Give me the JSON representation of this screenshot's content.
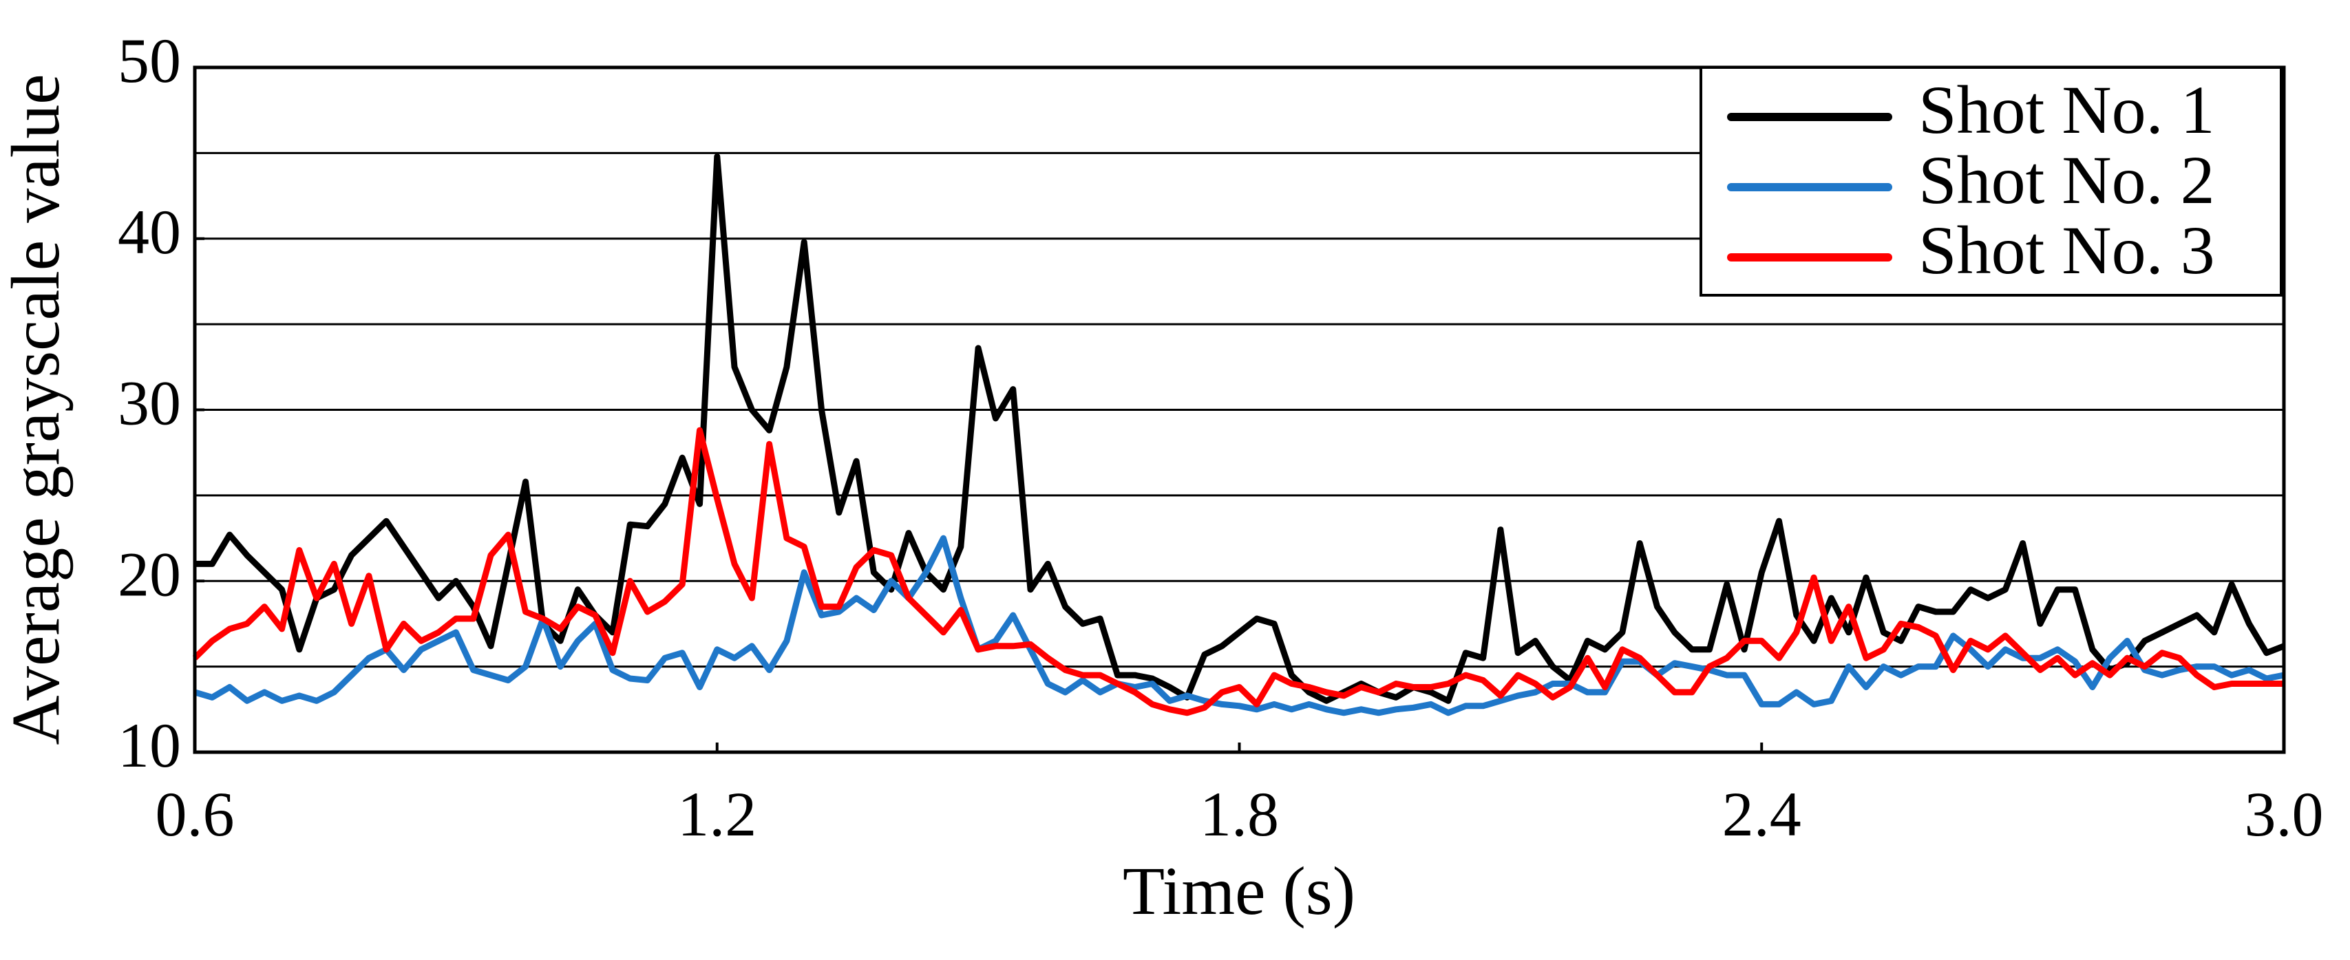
{
  "chart_data": {
    "type": "line",
    "xlabel": "Time (s)",
    "ylabel": "Average grayscale value",
    "xlim": [
      0.6,
      3.0
    ],
    "ylim": [
      10,
      50
    ],
    "xticks": [
      0.6,
      1.2,
      1.8,
      2.4,
      {
        "value": 3,
        "label": "3.0"
      }
    ],
    "yticks": [
      10,
      20,
      30,
      40,
      50
    ],
    "y_gridlines": [
      15,
      20,
      25,
      30,
      35,
      40,
      45
    ],
    "grid": true,
    "legend": "upper right",
    "x": [
      0.6,
      0.62,
      0.64,
      0.66,
      0.68,
      0.7,
      0.72,
      0.74,
      0.76,
      0.78,
      0.8,
      0.82,
      0.84,
      0.86,
      0.88,
      0.9,
      0.92,
      0.94,
      0.96,
      0.98,
      1.0,
      1.02,
      1.04,
      1.06,
      1.08,
      1.1,
      1.12,
      1.14,
      1.16,
      1.18,
      1.2,
      1.22,
      1.24,
      1.26,
      1.28,
      1.3,
      1.32,
      1.34,
      1.36,
      1.38,
      1.4,
      1.42,
      1.44,
      1.46,
      1.48,
      1.5,
      1.52,
      1.54,
      1.56,
      1.58,
      1.6,
      1.62,
      1.64,
      1.66,
      1.68,
      1.7,
      1.72,
      1.74,
      1.76,
      1.78,
      1.8,
      1.82,
      1.84,
      1.86,
      1.88,
      1.9,
      1.92,
      1.94,
      1.96,
      1.98,
      2.0,
      2.02,
      2.04,
      2.06,
      2.08,
      2.1,
      2.12,
      2.14,
      2.16,
      2.18,
      2.2,
      2.22,
      2.24,
      2.26,
      2.28,
      2.3,
      2.32,
      2.34,
      2.36,
      2.38,
      2.4,
      2.42,
      2.44,
      2.46,
      2.48,
      2.5,
      2.52,
      2.54,
      2.56,
      2.58,
      2.6,
      2.62,
      2.64,
      2.66,
      2.68,
      2.7,
      2.72,
      2.74,
      2.76,
      2.78,
      2.8,
      2.82,
      2.84,
      2.86,
      2.88,
      2.9,
      2.92,
      2.94,
      2.96,
      2.98,
      3.0
    ],
    "series": [
      {
        "name": "Shot No. 1",
        "color": "#000000",
        "values": [
          21,
          21,
          22.7,
          21.5,
          20.5,
          19.5,
          16,
          19,
          19.5,
          21.5,
          22.5,
          23.5,
          22,
          20.5,
          19,
          20,
          18.5,
          16.2,
          21,
          25.8,
          17.5,
          16.5,
          19.5,
          18,
          17,
          23.3,
          23.2,
          24.5,
          27.2,
          24.5,
          44.8,
          32.5,
          30,
          28.8,
          32.5,
          39.8,
          30,
          24,
          27,
          20.5,
          19.5,
          22.8,
          20.5,
          19.5,
          22,
          33.6,
          29.5,
          31.2,
          19.5,
          21,
          18.5,
          17.5,
          17.8,
          14.5,
          14.5,
          14.3,
          13.8,
          13.2,
          15.7,
          16.2,
          17,
          17.8,
          17.5,
          14.5,
          13.5,
          13,
          13.5,
          14,
          13.5,
          13.2,
          13.8,
          13.5,
          13,
          15.8,
          15.5,
          23,
          15.8,
          16.5,
          15,
          14.2,
          16.5,
          16,
          17,
          22.2,
          18.5,
          17,
          16,
          16,
          19.8,
          16,
          20.5,
          23.5,
          18,
          16.5,
          19,
          17,
          20.2,
          17,
          16.5,
          18.5,
          18.2,
          18.2,
          19.5,
          19,
          19.5,
          22.2,
          17.5,
          19.5,
          19.5,
          16,
          14.8,
          15.2,
          16.5,
          17,
          17.5,
          18,
          17,
          19.8,
          17.5,
          15.8,
          16.2
        ]
      },
      {
        "name": "Shot No. 2",
        "color": "#1f77c9",
        "values": [
          13.5,
          13.2,
          13.8,
          13,
          13.5,
          13,
          13.3,
          13,
          13.5,
          14.5,
          15.5,
          16,
          14.8,
          16,
          16.5,
          17,
          14.8,
          14.5,
          14.2,
          15,
          17.8,
          15,
          16.5,
          17.5,
          14.8,
          14.3,
          14.2,
          15.5,
          15.8,
          13.8,
          16,
          15.5,
          16.2,
          14.8,
          16.5,
          20.5,
          18,
          18.2,
          19,
          18.3,
          20,
          19,
          20.5,
          22.5,
          19,
          16,
          16.5,
          18,
          16,
          14,
          13.5,
          14.2,
          13.5,
          14,
          13.8,
          14,
          13,
          13.3,
          13,
          12.8,
          12.7,
          12.5,
          12.8,
          12.5,
          12.8,
          12.5,
          12.3,
          12.5,
          12.3,
          12.5,
          12.6,
          12.8,
          12.3,
          12.7,
          12.7,
          13,
          13.3,
          13.5,
          14,
          14,
          13.5,
          13.5,
          15.3,
          15.3,
          14.5,
          15.2,
          15,
          14.8,
          14.5,
          14.5,
          12.8,
          12.8,
          13.5,
          12.8,
          13,
          15,
          13.8,
          15,
          14.5,
          15,
          15,
          16.8,
          16,
          15,
          16,
          15.5,
          15.5,
          16,
          15.3,
          13.8,
          15.5,
          16.5,
          14.8,
          14.5,
          14.8,
          15,
          15,
          14.5,
          14.8,
          14.3,
          14.5
        ]
      },
      {
        "name": "Shot No. 3",
        "color": "#ff0000",
        "values": [
          15.5,
          16.5,
          17.2,
          17.5,
          18.5,
          17.2,
          21.8,
          19,
          21,
          17.5,
          20.3,
          16,
          17.5,
          16.5,
          17,
          17.8,
          17.8,
          21.5,
          22.7,
          18.2,
          17.8,
          17.2,
          18.5,
          18,
          15.8,
          20,
          18.2,
          18.8,
          19.8,
          28.8,
          24.8,
          21,
          19,
          28,
          22.5,
          22,
          18.5,
          18.5,
          20.8,
          21.8,
          21.5,
          19,
          18,
          17,
          18.3,
          16,
          16.2,
          16.2,
          16.3,
          15.5,
          14.8,
          14.5,
          14.5,
          14,
          13.5,
          12.8,
          12.5,
          12.3,
          12.6,
          13.5,
          13.8,
          12.8,
          14.5,
          14,
          13.8,
          13.5,
          13.3,
          13.8,
          13.5,
          14,
          13.8,
          13.8,
          14,
          14.5,
          14.2,
          13.3,
          14.5,
          14,
          13.2,
          13.8,
          15.5,
          13.8,
          16,
          15.5,
          14.5,
          13.5,
          13.5,
          15,
          15.5,
          16.5,
          16.5,
          15.5,
          17,
          20.2,
          16.5,
          18.5,
          15.5,
          16,
          17.5,
          17.3,
          16.8,
          14.8,
          16.5,
          16,
          16.8,
          15.8,
          14.8,
          15.5,
          14.5,
          15.2,
          14.5,
          15.5,
          15,
          15.8,
          15.5,
          14.5,
          13.8,
          14,
          14,
          14,
          14
        ]
      }
    ]
  }
}
